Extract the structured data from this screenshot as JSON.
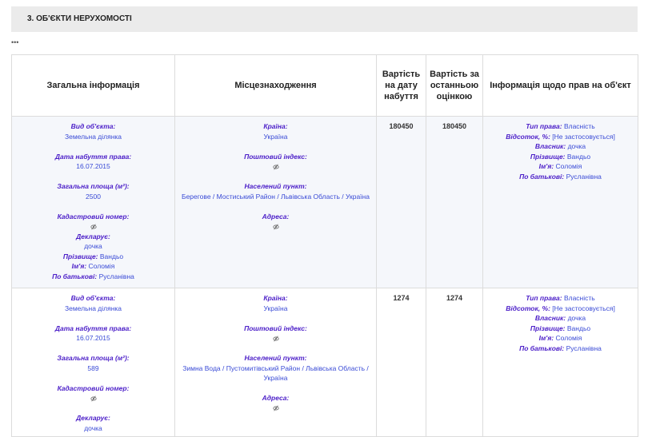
{
  "header": {
    "title": "3.  ОБ'ЄКТИ НЕРУХОМОСТІ",
    "ellipsis": "•••"
  },
  "table": {
    "headers": [
      "Загальна інформація",
      "Місцезнаходження",
      "Вартість на дату набуття",
      "Вартість за останньою оцінкою",
      "Інформація щодо прав на об'єкт"
    ],
    "rows": [
      {
        "general": [
          {
            "label": "Вид об'єкта:",
            "value": "Земельна ділянка"
          },
          {
            "label": "Дата набуття права:",
            "value": "16.07.2015"
          },
          {
            "label": "Загальна площа (м²):",
            "value": "2500"
          },
          {
            "label": "Кадастровий номер:"
          },
          {
            "label": "Декларує:",
            "value": "дочка",
            "details": [
              {
                "label": "Прізвище:",
                "value": "Вандьо"
              },
              {
                "label": "Ім'я:",
                "value": "Соломія"
              },
              {
                "label": "По батькові:",
                "value": "Русланівна"
              }
            ]
          }
        ],
        "location": [
          {
            "label": "Країна:",
            "value": "Україна"
          },
          {
            "label": "Поштовий індекс:"
          },
          {
            "label": "Населений пункт:",
            "value": "Берегове / Мостиський Район / Львівська Область / Україна"
          },
          {
            "label": "Адреса:"
          }
        ],
        "cost_acquisition": 180450,
        "cost_valuation": 180450,
        "rights": [
          {
            "label": "Тип права:",
            "value": "Власність"
          },
          {
            "label": "Відсоток, %:",
            "value": "[Не застосовується]"
          },
          {
            "label": "Власник:",
            "value": "дочка"
          },
          {
            "label": "Прізвище:",
            "value": "Вандьо"
          },
          {
            "label": "Ім'я:",
            "value": "Соломія"
          },
          {
            "label": "По батькові:",
            "value": "Русланівна"
          }
        ]
      },
      {
        "general": [
          {
            "label": "Вид об'єкта:",
            "value": "Земельна ділянка"
          },
          {
            "label": "Дата набуття права:",
            "value": "16.07.2015"
          },
          {
            "label": "Загальна площа (м²):",
            "value": "589"
          },
          {
            "label": "Кадастровий номер:"
          },
          {
            "label": "Декларує:",
            "value": "дочка"
          }
        ],
        "location": [
          {
            "label": "Країна:",
            "value": "Україна"
          },
          {
            "label": "Поштовий індекс:"
          },
          {
            "label": "Населений пункт:",
            "value": "Зимна Вода / Пустомитівський Район / Львівська Область / Україна"
          },
          {
            "label": "Адреса:"
          }
        ],
        "cost_acquisition": 1274,
        "cost_valuation": 1274,
        "rights": [
          {
            "label": "Тип права:",
            "value": "Власність"
          },
          {
            "label": "Відсоток, %:",
            "value": "[Не застосовується]"
          },
          {
            "label": "Власник:",
            "value": "дочка"
          },
          {
            "label": "Прізвище:",
            "value": "Вандьо"
          },
          {
            "label": "Ім'я:",
            "value": "Соломія"
          },
          {
            "label": "По батькові:",
            "value": "Русланівна"
          }
        ]
      }
    ]
  }
}
